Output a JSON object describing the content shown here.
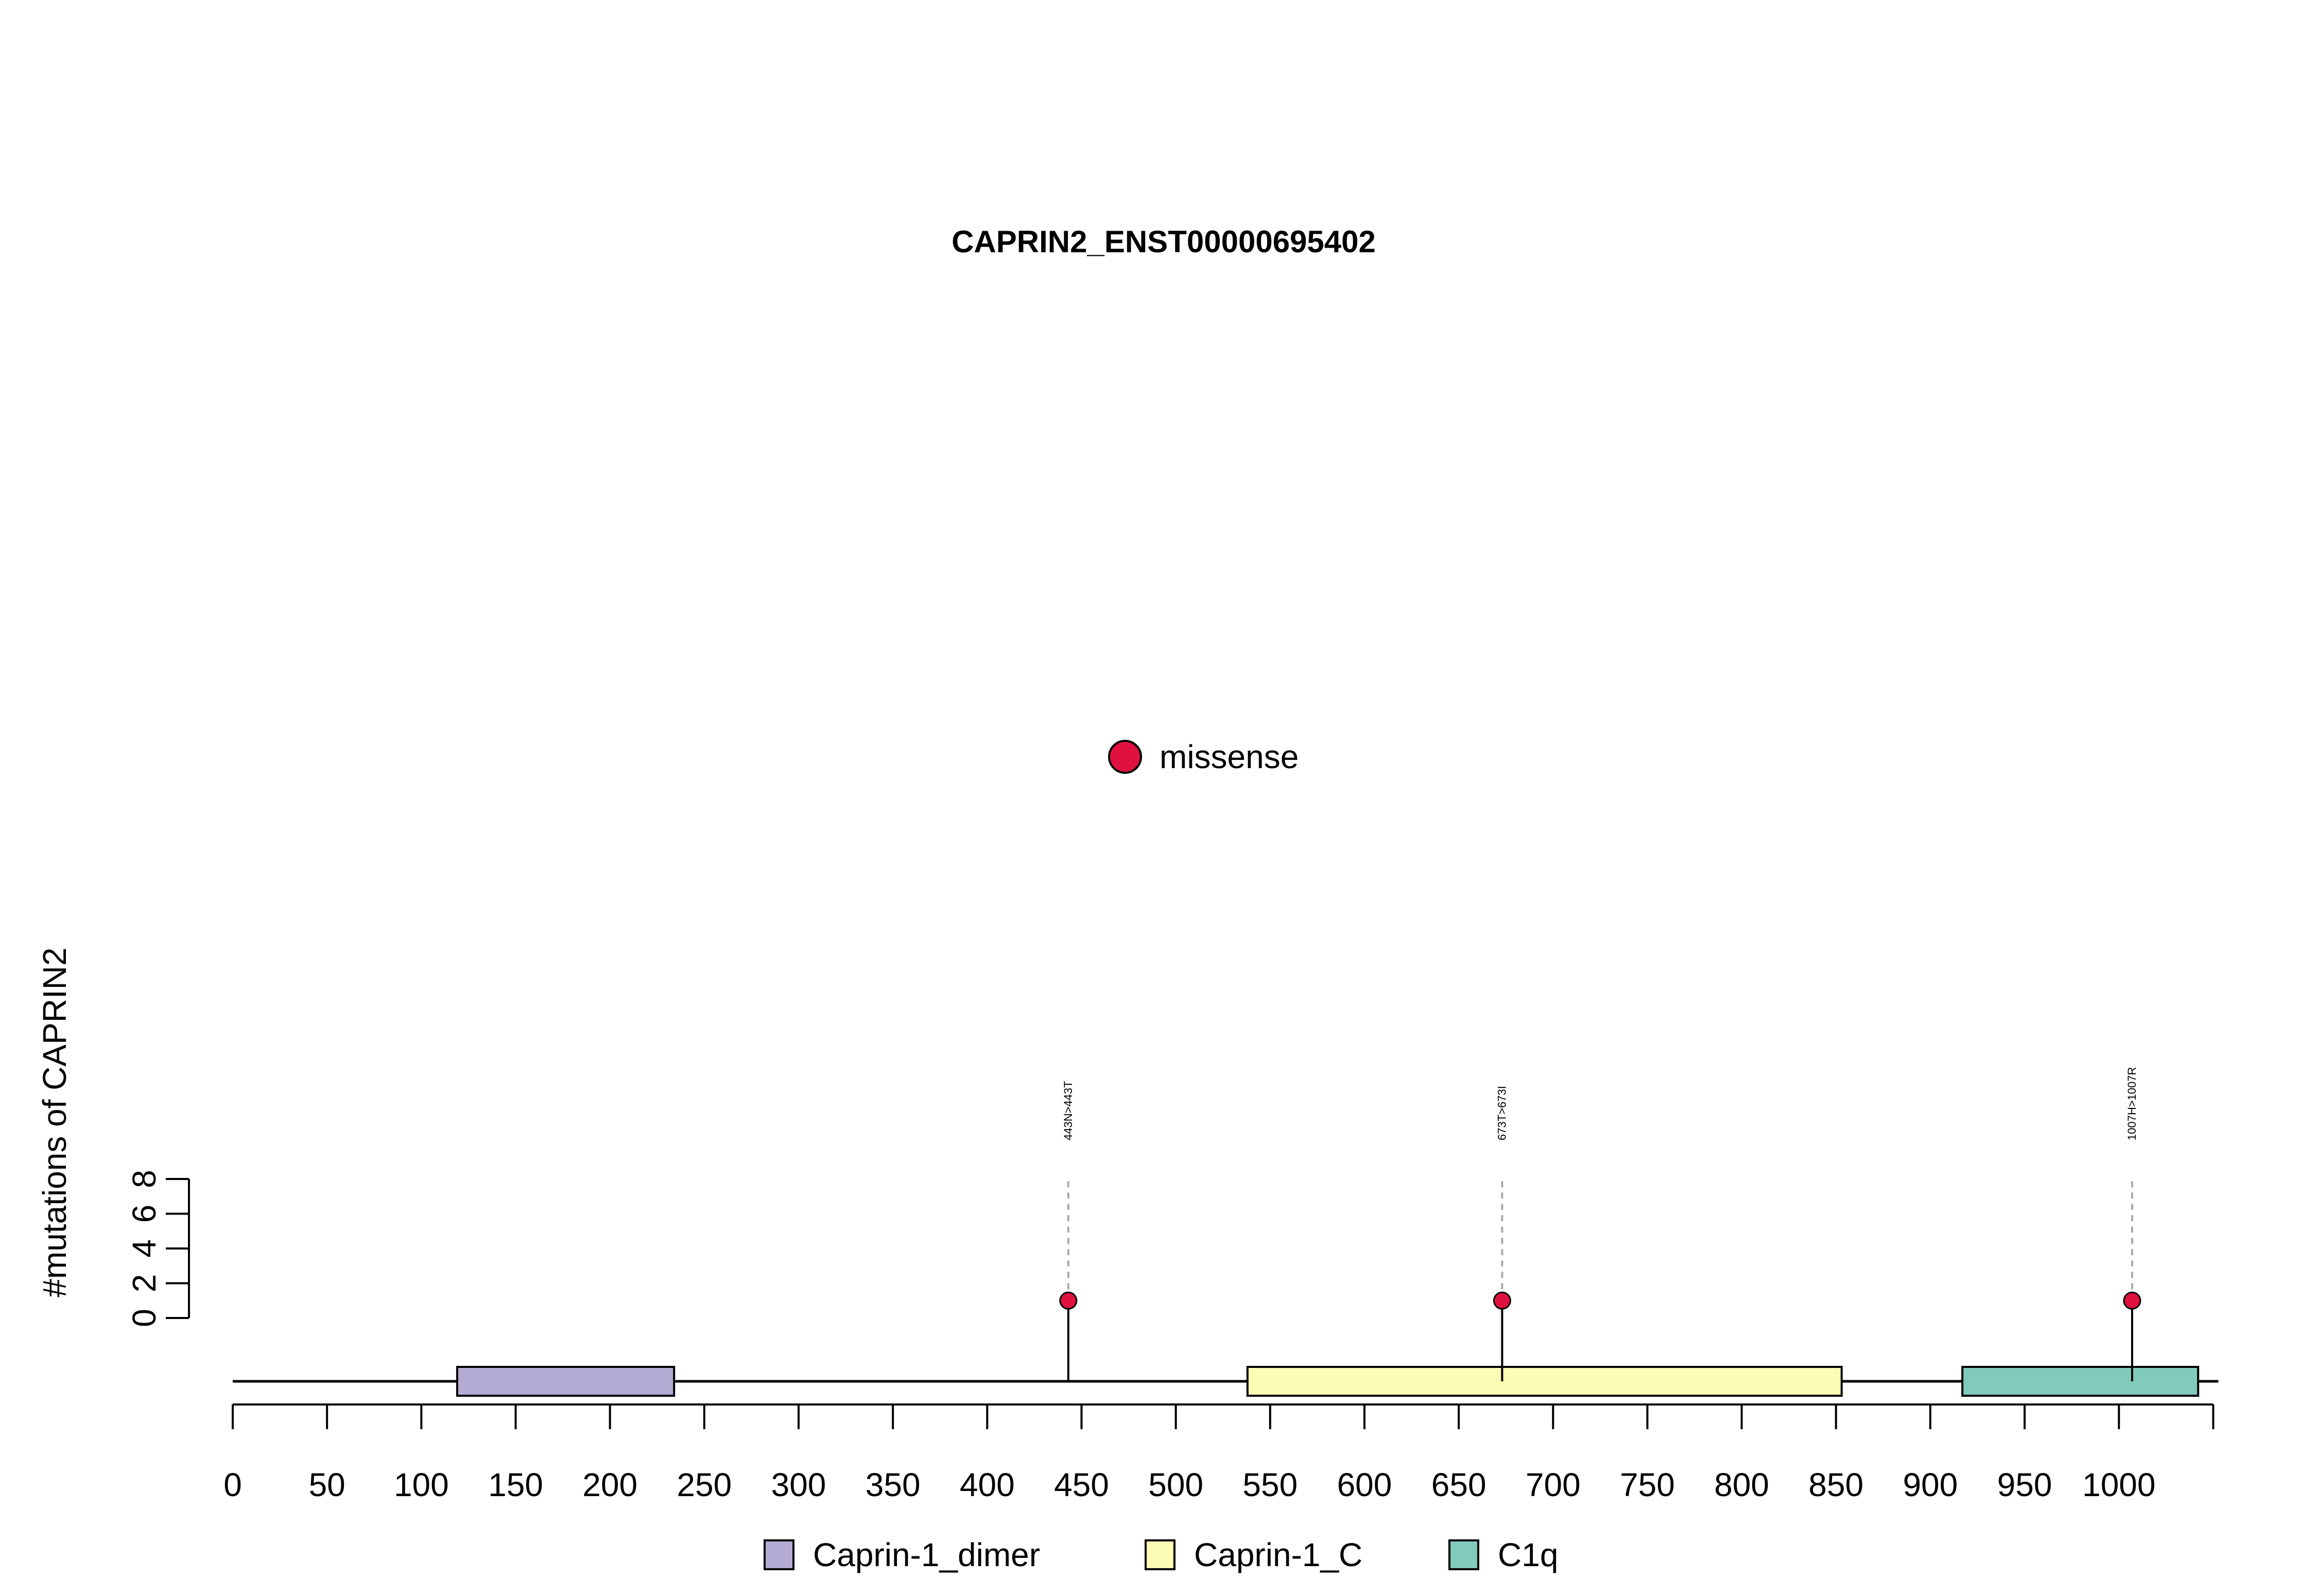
{
  "chart_data": {
    "type": "lollipop",
    "title": "CAPRIN2_ENST00000695402",
    "ylabel": "#mutations of CAPRIN2",
    "xlabel": "",
    "xlim": [
      0,
      1050
    ],
    "ylim": [
      0,
      8
    ],
    "x_ticks": [
      0,
      50,
      100,
      150,
      200,
      250,
      300,
      350,
      400,
      450,
      500,
      550,
      600,
      650,
      700,
      750,
      800,
      850,
      900,
      950,
      1000
    ],
    "y_ticks": [
      0,
      2,
      4,
      6,
      8
    ],
    "mutation_legend": [
      {
        "label": "missense",
        "color": "#e0103f"
      }
    ],
    "domains": [
      {
        "name": "Caprin-1_dimer",
        "start": 119,
        "end": 234,
        "color": "#b3abd3"
      },
      {
        "name": "Caprin-1_C",
        "start": 538,
        "end": 853,
        "color": "#fcfcb4"
      },
      {
        "name": "C1q",
        "start": 917,
        "end": 1042,
        "color": "#80cbb9"
      }
    ],
    "mutations": [
      {
        "position": 443,
        "count": 1,
        "label": "443N>443T",
        "type": "missense"
      },
      {
        "position": 673,
        "count": 1,
        "label": "673T>673I",
        "type": "missense"
      },
      {
        "position": 1007,
        "count": 1,
        "label": "1007H>1007R",
        "type": "missense"
      }
    ]
  }
}
